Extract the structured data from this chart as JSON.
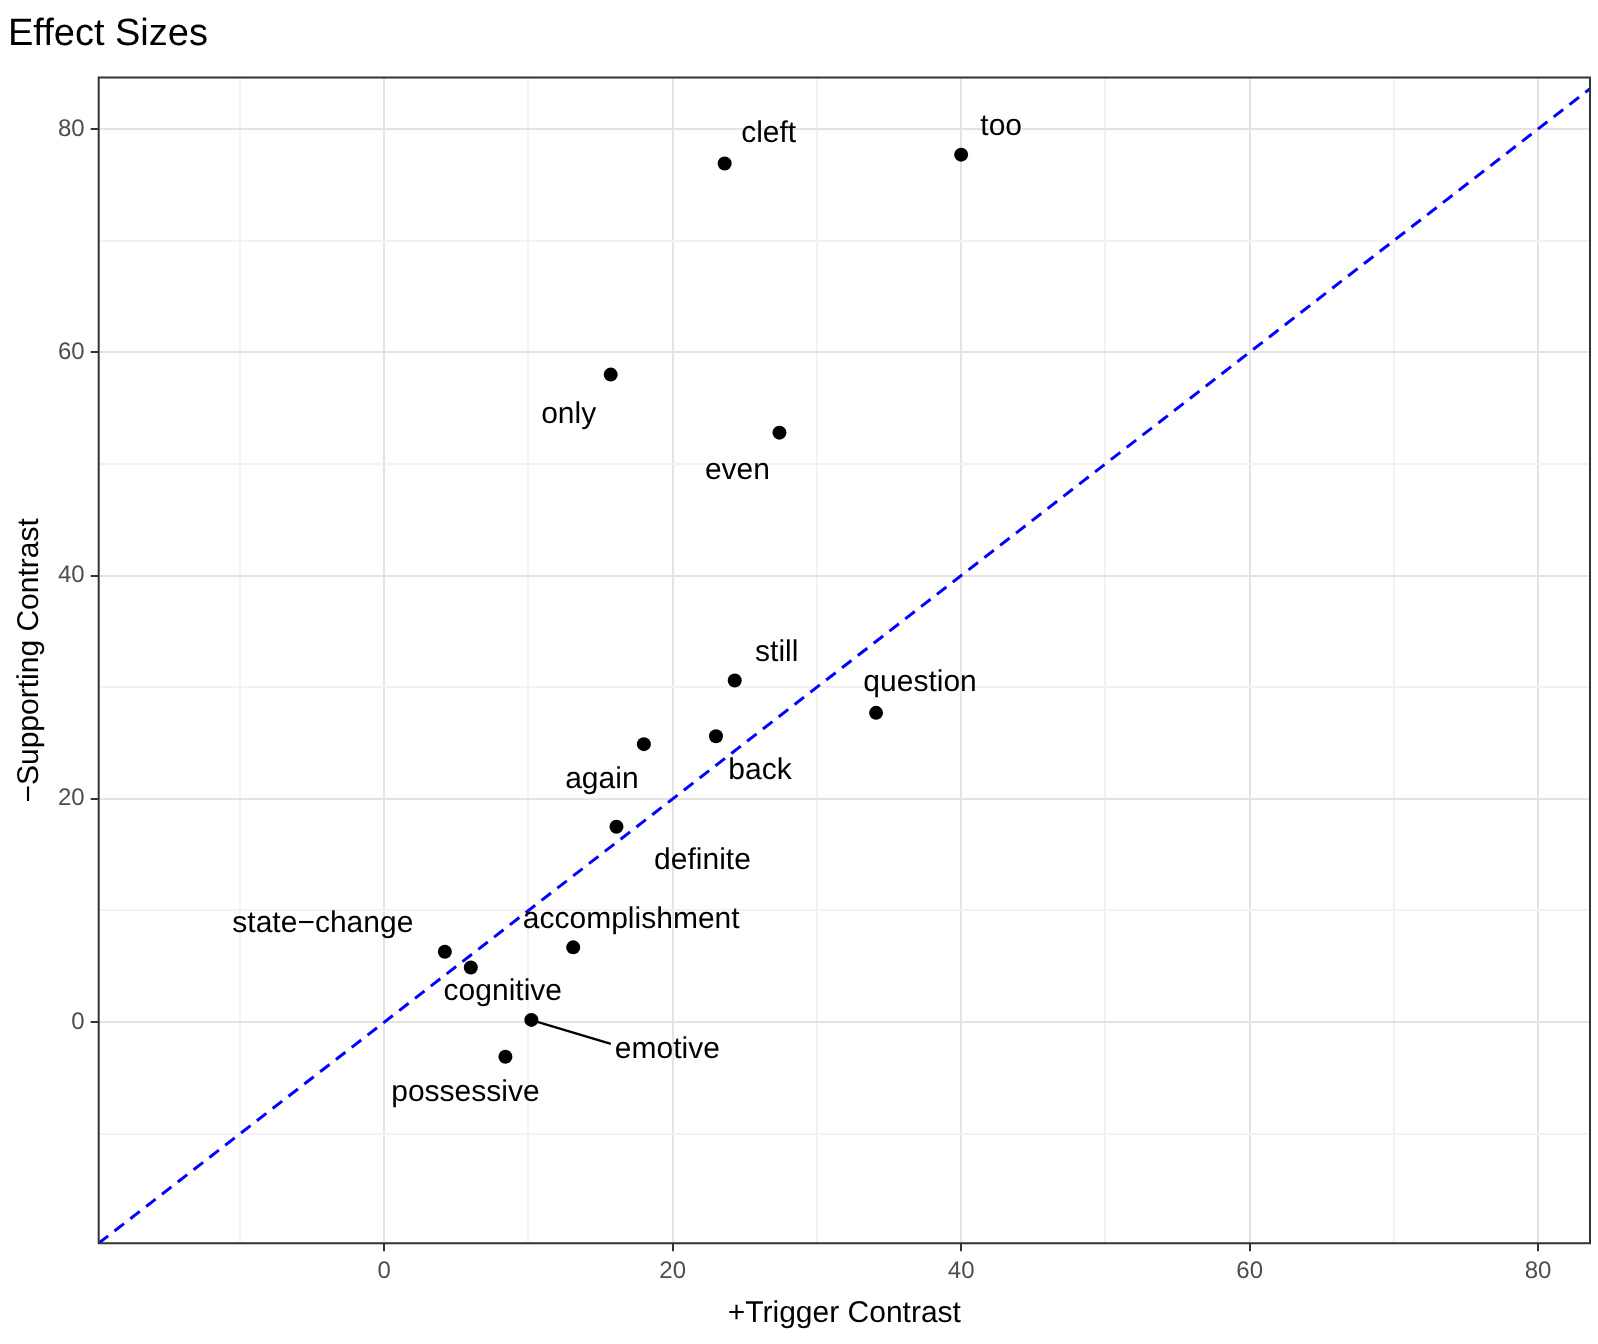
{
  "chart_data": {
    "type": "scatter",
    "title": "Effect Sizes",
    "xlabel": "+Trigger Contrast",
    "ylabel": "−Supporting Contrast",
    "xlim": [
      -19.8,
      83.6
    ],
    "ylim": [
      -19.8,
      84.6
    ],
    "xticks": [
      {
        "value": -10,
        "label": null
      },
      0,
      {
        "value": 10,
        "label": null
      },
      20,
      {
        "value": 30,
        "label": null
      },
      40,
      {
        "value": 50,
        "label": null
      },
      60,
      {
        "value": 70,
        "label": null
      },
      80
    ],
    "yticks": [
      {
        "value": -10,
        "label": null
      },
      0,
      {
        "value": 10,
        "label": null
      },
      20,
      {
        "value": 30,
        "label": null
      },
      40,
      {
        "value": 50,
        "label": null
      },
      60,
      {
        "value": 70,
        "label": null
      },
      80
    ],
    "grid": true,
    "legend": false,
    "series": [
      {
        "marker": "circle",
        "color": "#000000",
        "x": [
          40,
          23.6,
          15.7,
          27.4,
          24.3,
          34.1,
          23.0,
          18.0,
          16.1,
          13.1,
          4.2,
          6.0,
          10.2,
          8.4
        ],
        "values": [
          77.7,
          76.9,
          58.0,
          52.8,
          30.6,
          27.7,
          25.6,
          24.9,
          17.5,
          6.7,
          6.3,
          4.9,
          0.2,
          -3.1
        ]
      },
      {
        "type": "line",
        "marker": "none",
        "color": "#0000ff",
        "line_style": "dashed",
        "x": [
          -19.8,
          83.6
        ],
        "values": [
          -19.8,
          83.6
        ]
      }
    ],
    "annotations": [
      {
        "text": "too",
        "x": 40,
        "y": 77.7
      },
      {
        "text": "cleft",
        "x": 23.6,
        "y": 76.9
      },
      {
        "text": "only",
        "x": 15.7,
        "y": 58.0
      },
      {
        "text": "even",
        "x": 27.4,
        "y": 52.8
      },
      {
        "text": "still",
        "x": 24.3,
        "y": 30.6
      },
      {
        "text": "question",
        "x": 34.1,
        "y": 27.7
      },
      {
        "text": "back",
        "x": 23.0,
        "y": 25.6
      },
      {
        "text": "again",
        "x": 18.0,
        "y": 24.9
      },
      {
        "text": "definite",
        "x": 16.1,
        "y": 17.5
      },
      {
        "text": "accomplishment",
        "x": 13.1,
        "y": 6.7
      },
      {
        "text": "state−change",
        "x": 4.2,
        "y": 6.3
      },
      {
        "text": "cognitive",
        "x": 6.0,
        "y": 4.9
      },
      {
        "text": "emotive",
        "x": 10.2,
        "y": 0.2
      },
      {
        "text": "possessive",
        "x": 8.4,
        "y": -3.1
      }
    ]
  }
}
